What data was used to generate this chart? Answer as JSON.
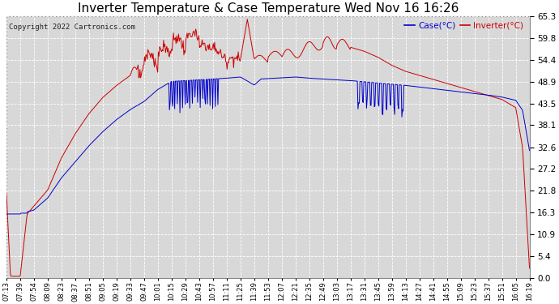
{
  "title": "Inverter Temperature & Case Temperature Wed Nov 16 16:26",
  "copyright": "Copyright 2022 Cartronics.com",
  "legend_case": "Case(°C)",
  "legend_inverter": "Inverter(°C)",
  "yticks": [
    0.0,
    5.4,
    10.9,
    16.3,
    21.8,
    27.2,
    32.6,
    38.1,
    43.5,
    48.9,
    54.4,
    59.8,
    65.3
  ],
  "ylim": [
    0.0,
    65.3
  ],
  "bg_color": "#ffffff",
  "plot_bg_color": "#d8d8d8",
  "grid_color": "#ffffff",
  "case_color": "#0000cc",
  "inverter_color": "#cc0000",
  "title_fontsize": 11,
  "xtick_labels": [
    "07:13",
    "07:39",
    "07:54",
    "08:09",
    "08:23",
    "08:37",
    "08:51",
    "09:05",
    "09:19",
    "09:33",
    "09:47",
    "10:01",
    "10:15",
    "10:29",
    "10:43",
    "10:57",
    "11:11",
    "11:25",
    "11:39",
    "11:53",
    "12:07",
    "12:21",
    "12:35",
    "12:49",
    "13:03",
    "13:17",
    "13:31",
    "13:45",
    "13:59",
    "14:13",
    "14:27",
    "14:41",
    "14:55",
    "15:09",
    "15:23",
    "15:37",
    "15:51",
    "16:05",
    "16:19"
  ]
}
